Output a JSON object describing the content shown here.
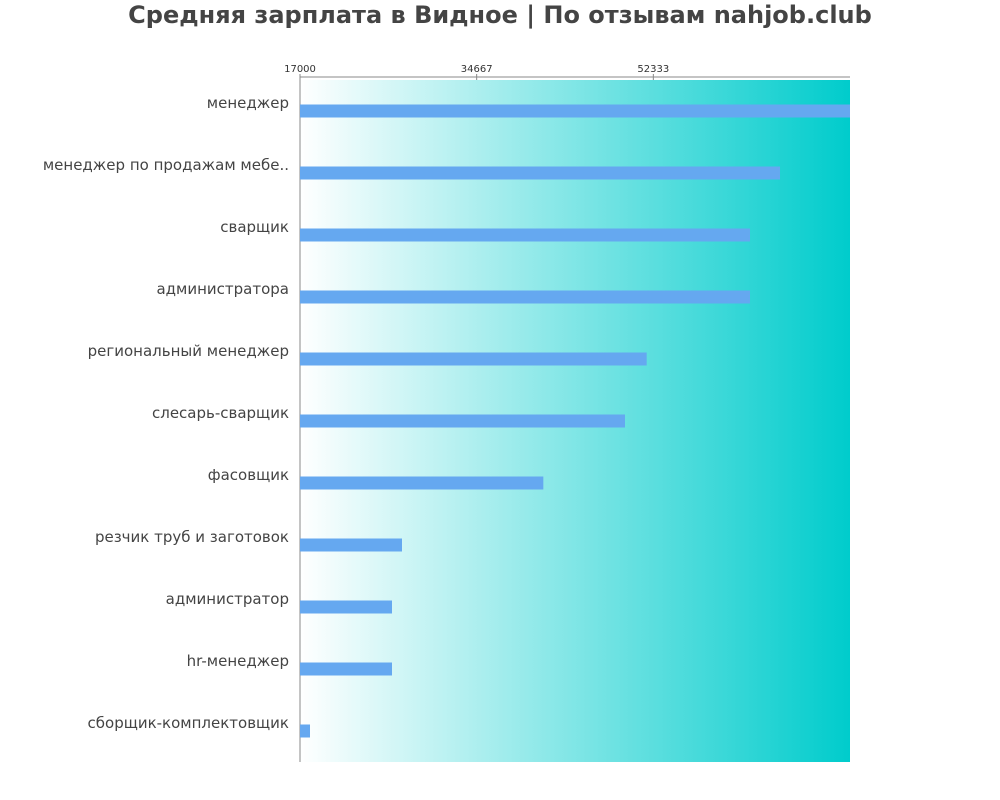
{
  "title": "Средняя зарплата в Видное | По отзывам nahjob.club",
  "colors": {
    "bar": "#65a8f0",
    "gradient_start": "#ffffff",
    "gradient_end": "#00cccc",
    "text": "#444444",
    "axis": "#888888"
  },
  "chart_data": {
    "type": "bar",
    "orientation": "horizontal",
    "title": "Средняя зарплата в Видное | По отзывам nahjob.club",
    "xlabel": "",
    "ylabel": "",
    "xlim": [
      17000,
      72000
    ],
    "xticks": [
      17000,
      34667,
      52333
    ],
    "xtick_labels": [
      "17000",
      "34667",
      "52333"
    ],
    "grid": false,
    "categories": [
      "менеджер",
      "менеджер по продажам мебе..",
      "сварщик",
      "администратора",
      "региональный менеджер",
      "слесарь-сварщик",
      "фасовщик",
      "резчик труб и заготовок",
      "администратор",
      "hr-менеджер",
      "сборщик-комплектовщик"
    ],
    "values": [
      72000,
      65000,
      62000,
      62000,
      51667,
      49500,
      41333,
      27200,
      26200,
      26200,
      18000
    ]
  }
}
